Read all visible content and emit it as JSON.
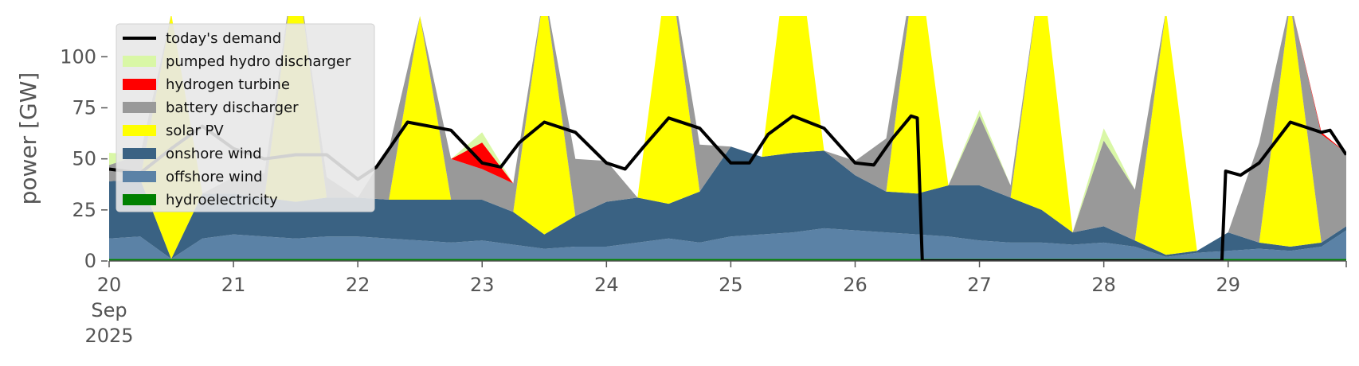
{
  "chart_data": {
    "type": "area",
    "title": "",
    "ylabel": "power [GW]",
    "xlabel": "",
    "ylim": [
      0,
      120
    ],
    "xlim": [
      20.0,
      29.95
    ],
    "grid": false,
    "legend_position": "top-left",
    "x_ticks": [
      {
        "value": 20,
        "lines": [
          "20",
          "Sep",
          "2025"
        ]
      },
      {
        "value": 21,
        "lines": [
          "21"
        ]
      },
      {
        "value": 22,
        "lines": [
          "22"
        ]
      },
      {
        "value": 23,
        "lines": [
          "23"
        ]
      },
      {
        "value": 24,
        "lines": [
          "24"
        ]
      },
      {
        "value": 25,
        "lines": [
          "25"
        ]
      },
      {
        "value": 26,
        "lines": [
          "26"
        ]
      },
      {
        "value": 27,
        "lines": [
          "27"
        ]
      },
      {
        "value": 28,
        "lines": [
          "28"
        ]
      },
      {
        "value": 29,
        "lines": [
          "29"
        ]
      }
    ],
    "y_ticks": [
      0,
      25,
      50,
      75,
      100
    ],
    "x": [
      20.0,
      20.25,
      20.5,
      20.75,
      21.0,
      21.25,
      21.5,
      21.75,
      22.0,
      22.25,
      22.5,
      22.75,
      23.0,
      23.25,
      23.5,
      23.75,
      24.0,
      24.25,
      24.5,
      24.75,
      25.0,
      25.25,
      25.5,
      25.75,
      26.0,
      26.25,
      26.5,
      26.75,
      27.0,
      27.25,
      27.5,
      27.75,
      28.0,
      28.25,
      28.5,
      28.75,
      29.0,
      29.25,
      29.5,
      29.75,
      29.95
    ],
    "series": [
      {
        "name": "hydroelectricity",
        "color": "#008000",
        "values": [
          1,
          1,
          1,
          1,
          1,
          1,
          1,
          1,
          1,
          1,
          1,
          1,
          1,
          1,
          1,
          1,
          1,
          1,
          1,
          1,
          1,
          1,
          1,
          1,
          1,
          1,
          1,
          1,
          1,
          1,
          1,
          1,
          1,
          1,
          1,
          1,
          1,
          1,
          1,
          1,
          1
        ]
      },
      {
        "name": "offshore wind",
        "color": "#5b82a6",
        "values": [
          10,
          11,
          0,
          10,
          12,
          11,
          10,
          11,
          11,
          10,
          9,
          8,
          9,
          7,
          5,
          6,
          6,
          8,
          10,
          8,
          11,
          12,
          13,
          15,
          14,
          13,
          12,
          11,
          9,
          8,
          8,
          7,
          8,
          6,
          1,
          3,
          4,
          5,
          4,
          6,
          14
        ]
      },
      {
        "name": "onshore wind",
        "color": "#3a6283",
        "values": [
          28,
          28,
          0,
          22,
          20,
          19,
          18,
          19,
          19,
          19,
          20,
          21,
          20,
          16,
          7,
          15,
          22,
          22,
          17,
          25,
          44,
          38,
          39,
          38,
          27,
          20,
          20,
          25,
          27,
          22,
          16,
          6,
          8,
          3,
          1,
          1,
          9,
          3,
          2,
          2,
          2
        ]
      },
      {
        "name": "solar PV",
        "color": "#ffff00",
        "values": [
          0,
          0,
          120,
          0,
          0,
          0,
          120,
          0,
          0,
          0,
          90,
          0,
          0,
          0,
          120,
          0,
          0,
          0,
          120,
          0,
          0,
          0,
          120,
          0,
          0,
          0,
          120,
          0,
          0,
          0,
          120,
          0,
          0,
          0,
          120,
          0,
          0,
          0,
          120,
          0,
          0
        ]
      },
      {
        "name": "battery discharger",
        "color": "#999999",
        "values": [
          8,
          12,
          0,
          0,
          8,
          12,
          0,
          10,
          0,
          25,
          0,
          20,
          15,
          14,
          0,
          28,
          20,
          0,
          0,
          23,
          0,
          0,
          0,
          0,
          7,
          26,
          0,
          0,
          34,
          6,
          0,
          0,
          42,
          25,
          0,
          0,
          0,
          49,
          0,
          53,
          36
        ]
      },
      {
        "name": "hydrogen turbine",
        "color": "#ff0000",
        "values": [
          0,
          0,
          0,
          0,
          0,
          0,
          0,
          0,
          0,
          0,
          0,
          0,
          13,
          0,
          0,
          0,
          0,
          0,
          0,
          0,
          0,
          0,
          0,
          0,
          0,
          0,
          0,
          0,
          0,
          0,
          0,
          0,
          0,
          0,
          0,
          0,
          0,
          0,
          0,
          1,
          0
        ]
      },
      {
        "name": "pumped hydro discharger",
        "color": "#d9f7a6",
        "values": [
          6,
          0,
          0,
          0,
          0,
          0,
          0,
          0,
          0,
          0,
          0,
          0,
          5,
          0,
          0,
          0,
          0,
          0,
          0,
          0,
          0,
          0,
          0,
          0,
          0,
          0,
          0,
          0,
          3,
          0,
          0,
          0,
          6,
          0,
          0,
          0,
          0,
          0,
          0,
          0,
          0
        ]
      }
    ],
    "demand": {
      "name": "today's demand",
      "color": "#000000",
      "points": [
        [
          20.0,
          45
        ],
        [
          20.25,
          43
        ],
        [
          20.5,
          55
        ],
        [
          20.75,
          66
        ],
        [
          21.0,
          55
        ],
        [
          21.25,
          50
        ],
        [
          21.5,
          52
        ],
        [
          21.75,
          52
        ],
        [
          22.0,
          40
        ],
        [
          22.15,
          46
        ],
        [
          22.4,
          68
        ],
        [
          22.75,
          64
        ],
        [
          23.0,
          48
        ],
        [
          23.15,
          46
        ],
        [
          23.3,
          58
        ],
        [
          23.5,
          68
        ],
        [
          23.75,
          63
        ],
        [
          24.0,
          48
        ],
        [
          24.15,
          45
        ],
        [
          24.3,
          56
        ],
        [
          24.5,
          70
        ],
        [
          24.75,
          65
        ],
        [
          25.0,
          48
        ],
        [
          25.15,
          48
        ],
        [
          25.3,
          62
        ],
        [
          25.5,
          71
        ],
        [
          25.75,
          65
        ],
        [
          26.0,
          48
        ],
        [
          26.15,
          47
        ],
        [
          26.3,
          60
        ],
        [
          26.45,
          71
        ],
        [
          26.5,
          70
        ],
        [
          26.54,
          0
        ],
        [
          28.95,
          0
        ],
        [
          28.98,
          44
        ],
        [
          29.1,
          42
        ],
        [
          29.25,
          48
        ],
        [
          29.5,
          68
        ],
        [
          29.75,
          63
        ],
        [
          29.82,
          64
        ],
        [
          29.95,
          52
        ]
      ]
    },
    "legend": [
      {
        "label": "today's demand",
        "kind": "line",
        "color": "#000000"
      },
      {
        "label": "pumped hydro discharger",
        "kind": "patch",
        "color": "#d9f7a6"
      },
      {
        "label": "hydrogen turbine",
        "kind": "patch",
        "color": "#ff0000"
      },
      {
        "label": "battery discharger",
        "kind": "patch",
        "color": "#999999"
      },
      {
        "label": "solar PV",
        "kind": "patch",
        "color": "#ffff00"
      },
      {
        "label": "onshore wind",
        "kind": "patch",
        "color": "#3a6283"
      },
      {
        "label": "offshore wind",
        "kind": "patch",
        "color": "#5b82a6"
      },
      {
        "label": "hydroelectricity",
        "kind": "patch",
        "color": "#008000"
      }
    ]
  }
}
